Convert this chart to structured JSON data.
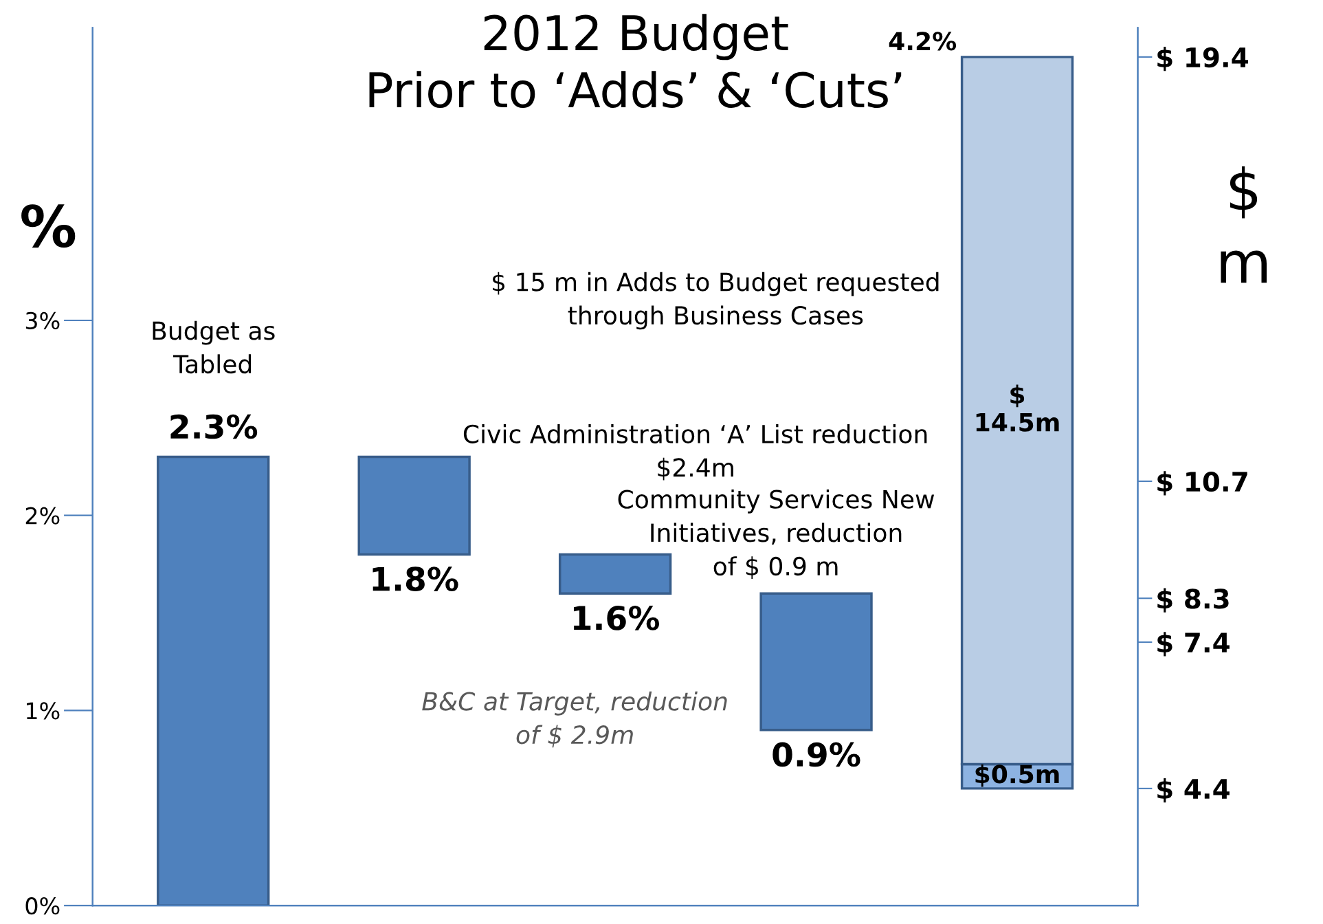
{
  "chart_data": {
    "type": "bar",
    "title": "2012 Budget\nPrior to ‘Adds’ & ‘Cuts’",
    "ylabel": "%",
    "y2label": "$\nm",
    "categories": [
      null,
      null,
      null,
      null,
      null
    ],
    "series": [
      {
        "color": "#4f81bd",
        "values": [
          2.3,
          -0.5,
          -0.2,
          -0.7,
          null
        ],
        "base": [
          0,
          2.3,
          1.8,
          1.6,
          null
        ],
        "value_labels": [
          "2.3%",
          "1.8%",
          "1.6%",
          "0.9%",
          null
        ]
      },
      {
        "axis": "y2",
        "color": "#8db3e2",
        "values": [
          null,
          null,
          null,
          null,
          0.5
        ],
        "base": [
          null,
          null,
          null,
          null,
          4.4
        ],
        "value_labels": [
          null,
          null,
          null,
          null,
          "$0.5m"
        ]
      },
      {
        "axis": "y2",
        "color": "#b9cde5",
        "values": [
          null,
          null,
          null,
          null,
          14.5
        ],
        "base": [
          null,
          null,
          null,
          null,
          4.9
        ],
        "value_labels": [
          null,
          null,
          null,
          null,
          "$\n14.5m"
        ]
      }
    ],
    "ylim": [
      0,
      4.5
    ],
    "yticks": [
      {
        "value": 0,
        "label": "0%"
      },
      {
        "value": 1,
        "label": "1%"
      },
      {
        "value": 2,
        "label": "2%"
      },
      {
        "value": 3,
        "label": "3%"
      }
    ],
    "y2lim": [
      2,
      20
    ],
    "y2ticks": [
      {
        "value": 4.4,
        "label": "$ 4.4"
      },
      {
        "value": 7.4,
        "label": "$ 7.4"
      },
      {
        "value": 8.3,
        "label": "$ 8.3"
      },
      {
        "value": 10.7,
        "label": "$ 10.7"
      },
      {
        "value": 19.4,
        "label": "$ 19.4"
      }
    ],
    "annotations": [
      "Budget as\nTabled",
      "Civic Administration ‘A’ List reduction\n$2.4m",
      "Community Services New\nInitiatives, reduction\nof $ 0.9 m",
      "B&C at Target, reduction\nof $ 2.9m",
      "$ 15 m in Adds to Budget requested\nthrough Business Cases",
      "4.2%"
    ],
    "grid": false
  }
}
